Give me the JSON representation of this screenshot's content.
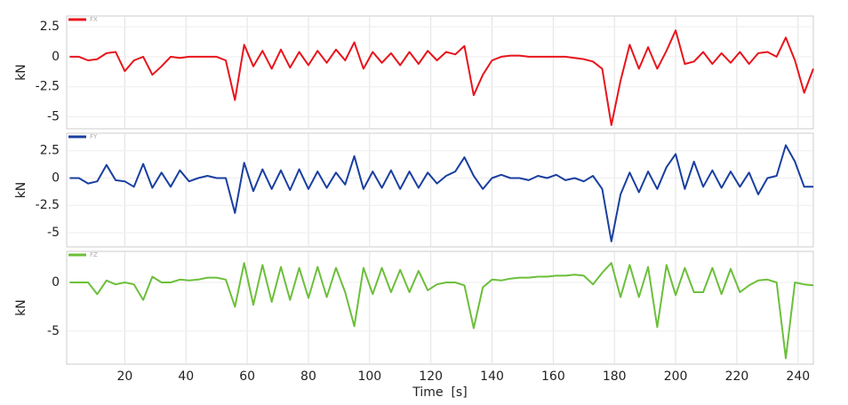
{
  "chart_data": [
    {
      "type": "line",
      "ylabel": "kN",
      "xlim": [
        1,
        245
      ],
      "ylim": [
        -6,
        3.4
      ],
      "yticks": [
        2.5,
        0,
        -2.5,
        -5.0
      ],
      "ytick_labels_fix": null,
      "x": [
        2,
        5,
        8,
        11,
        14,
        17,
        20,
        23,
        26,
        29,
        32,
        35,
        38,
        41,
        44,
        47,
        50,
        53,
        56,
        59,
        62,
        65,
        68,
        71,
        74,
        77,
        80,
        83,
        86,
        89,
        92,
        95,
        98,
        101,
        104,
        107,
        110,
        113,
        116,
        119,
        122,
        125,
        128,
        131,
        134,
        137,
        140,
        143,
        146,
        149,
        152,
        155,
        158,
        161,
        164,
        167,
        170,
        173,
        176,
        179,
        182,
        185,
        188,
        191,
        194,
        197,
        200,
        203,
        206,
        209,
        212,
        215,
        218,
        221,
        224,
        227,
        230,
        233,
        236,
        239,
        242,
        245
      ],
      "series": [
        {
          "name": "FX",
          "color": "#e8141c",
          "values": [
            0,
            0,
            -0.3,
            -0.2,
            0.3,
            0.4,
            -1.2,
            -0.3,
            0,
            -1.5,
            -0.8,
            0,
            -0.1,
            0,
            0,
            0,
            0,
            -0.3,
            -3.6,
            1.0,
            -0.8,
            0.5,
            -1.0,
            0.6,
            -0.9,
            0.4,
            -0.7,
            0.5,
            -0.5,
            0.6,
            -0.3,
            1.2,
            -1.0,
            0.4,
            -0.5,
            0.3,
            -0.7,
            0.4,
            -0.6,
            0.5,
            -0.3,
            0.4,
            0.2,
            0.9,
            -3.2,
            -1.5,
            -0.3,
            0,
            0.1,
            0.1,
            0,
            0,
            0,
            0,
            0,
            -0.1,
            -0.2,
            -0.4,
            -1.0,
            -5.7,
            -2.0,
            1.0,
            -1.0,
            0.8,
            -1.0,
            0.5,
            2.2,
            -0.6,
            -0.4,
            0.4,
            -0.6,
            0.3,
            -0.5,
            0.4,
            -0.6,
            0.3,
            0.4,
            0,
            1.6,
            -0.3,
            -3.0,
            -1.0
          ]
        }
      ],
      "grid": true
    },
    {
      "type": "line",
      "ylabel": "kN",
      "xlim": [
        1,
        245
      ],
      "ylim": [
        -6.3,
        4.1
      ],
      "yticks": [
        2.5,
        0,
        -2.5,
        -5.0
      ],
      "x": [
        2,
        5,
        8,
        11,
        14,
        17,
        20,
        23,
        26,
        29,
        32,
        35,
        38,
        41,
        44,
        47,
        50,
        53,
        56,
        59,
        62,
        65,
        68,
        71,
        74,
        77,
        80,
        83,
        86,
        89,
        92,
        95,
        98,
        101,
        104,
        107,
        110,
        113,
        116,
        119,
        122,
        125,
        128,
        131,
        134,
        137,
        140,
        143,
        146,
        149,
        152,
        155,
        158,
        161,
        164,
        167,
        170,
        173,
        176,
        179,
        182,
        185,
        188,
        191,
        194,
        197,
        200,
        203,
        206,
        209,
        212,
        215,
        218,
        221,
        224,
        227,
        230,
        233,
        236,
        239,
        242,
        245
      ],
      "series": [
        {
          "name": "FY",
          "color": "#1a3fa0",
          "values": [
            0,
            0,
            -0.5,
            -0.3,
            1.2,
            -0.2,
            -0.3,
            -0.8,
            1.3,
            -0.9,
            0.5,
            -0.8,
            0.7,
            -0.3,
            0,
            0.2,
            0,
            0,
            -3.2,
            1.4,
            -1.2,
            0.8,
            -1.0,
            0.7,
            -1.1,
            0.8,
            -1.0,
            0.6,
            -0.9,
            0.5,
            -0.6,
            2.0,
            -1.0,
            0.6,
            -0.9,
            0.7,
            -1.0,
            0.6,
            -0.9,
            0.5,
            -0.5,
            0.2,
            0.6,
            1.9,
            0.2,
            -1.0,
            0,
            0.3,
            0,
            0,
            -0.2,
            0.2,
            0,
            0.3,
            -0.2,
            0,
            -0.3,
            0.2,
            -1.0,
            -5.8,
            -1.5,
            0.5,
            -1.3,
            0.6,
            -1.0,
            1.0,
            2.2,
            -1.0,
            1.5,
            -0.8,
            0.7,
            -0.9,
            0.6,
            -0.8,
            0.5,
            -1.5,
            0,
            0.2,
            3.0,
            1.5,
            -0.8,
            -0.8
          ]
        }
      ],
      "grid": true
    },
    {
      "type": "line",
      "ylabel": "kN",
      "xlabel": "Time  [s]",
      "xlim": [
        1,
        245
      ],
      "ylim": [
        -8.4,
        3.2
      ],
      "yticks": [
        0,
        -5
      ],
      "xticks": [
        20,
        40,
        60,
        80,
        100,
        120,
        140,
        160,
        180,
        200,
        220,
        240
      ],
      "x": [
        2,
        5,
        8,
        11,
        14,
        17,
        20,
        23,
        26,
        29,
        32,
        35,
        38,
        41,
        44,
        47,
        50,
        53,
        56,
        59,
        62,
        65,
        68,
        71,
        74,
        77,
        80,
        83,
        86,
        89,
        92,
        95,
        98,
        101,
        104,
        107,
        110,
        113,
        116,
        119,
        122,
        125,
        128,
        131,
        134,
        137,
        140,
        143,
        146,
        149,
        152,
        155,
        158,
        161,
        164,
        167,
        170,
        173,
        176,
        179,
        182,
        185,
        188,
        191,
        194,
        197,
        200,
        203,
        206,
        209,
        212,
        215,
        218,
        221,
        224,
        227,
        230,
        233,
        236,
        239,
        242,
        245
      ],
      "series": [
        {
          "name": "FZ",
          "color": "#6cbf3a",
          "values": [
            0,
            0,
            0,
            -1.2,
            0.2,
            -0.2,
            0,
            -0.2,
            -1.8,
            0.6,
            0,
            0,
            0.3,
            0.2,
            0.3,
            0.5,
            0.5,
            0.3,
            -2.5,
            2.0,
            -2.3,
            1.8,
            -2.0,
            1.6,
            -1.8,
            1.5,
            -1.6,
            1.6,
            -1.5,
            1.5,
            -1.0,
            -4.5,
            1.5,
            -1.2,
            1.5,
            -1.0,
            1.3,
            -1.0,
            1.2,
            -0.8,
            -0.2,
            0,
            0,
            -0.3,
            -4.7,
            -0.5,
            0.3,
            0.2,
            0.4,
            0.5,
            0.5,
            0.6,
            0.6,
            0.7,
            0.7,
            0.8,
            0.7,
            -0.2,
            1.0,
            2.0,
            -1.5,
            1.8,
            -1.5,
            1.6,
            -4.6,
            1.8,
            -1.3,
            1.5,
            -1.0,
            -1.0,
            1.5,
            -1.2,
            1.4,
            -1.0,
            -0.3,
            0.2,
            0.3,
            0,
            -7.8,
            0,
            -0.2,
            -0.3
          ]
        }
      ],
      "grid": true
    }
  ]
}
